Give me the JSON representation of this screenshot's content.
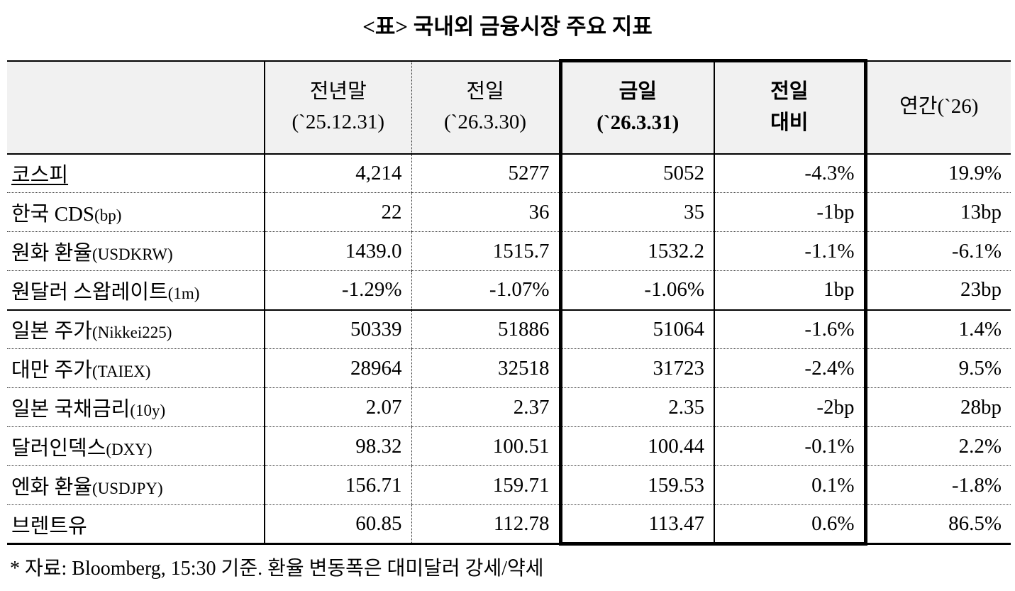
{
  "page": {
    "title": "<표> 국내외 금융시장 주요 지표",
    "footnote": "* 자료: Bloomberg, 15:30 기준. 환율 변동폭은 대미달러 강세/약세"
  },
  "colors": {
    "header_background": "#f1f1f1",
    "border": "#000000",
    "text": "#000000"
  },
  "table": {
    "header": {
      "col1": "",
      "col2_line1": "전년말",
      "col2_line2": "(`25.12.31)",
      "col3_line1": "전일",
      "col3_line2": "(`26.3.30)",
      "col4_line1": "금일",
      "col4_line2": "(`26.3.31)",
      "col5_line1": "전일",
      "col5_line2": "대비",
      "col6": "연간(`26)"
    },
    "rows": [
      {
        "name": "코스피",
        "sub": "",
        "values": [
          "4,214",
          "5277",
          "5052",
          "-4.3%",
          "19.9%"
        ]
      },
      {
        "name": "한국 CDS",
        "sub": "(bp)",
        "values": [
          "22",
          "36",
          "35",
          "-1bp",
          "13bp"
        ]
      },
      {
        "name": "원화 환율",
        "sub": "(USDKRW)",
        "values": [
          "1439.0",
          "1515.7",
          "1532.2",
          "-1.1%",
          "-6.1%"
        ]
      },
      {
        "name": "원달러 스왑레이트",
        "sub": "(1m)",
        "values": [
          "-1.29%",
          "-1.07%",
          "-1.06%",
          "1bp",
          "23bp"
        ]
      },
      {
        "name": "일본 주가",
        "sub": "(Nikkei225)",
        "values": [
          "50339",
          "51886",
          "51064",
          "-1.6%",
          "1.4%"
        ]
      },
      {
        "name": "대만 주가",
        "sub": "(TAIEX)",
        "values": [
          "28964",
          "32518",
          "31723",
          "-2.4%",
          "9.5%"
        ]
      },
      {
        "name": "일본 국채금리",
        "sub": "(10y)",
        "values": [
          "2.07",
          "2.37",
          "2.35",
          "-2bp",
          "28bp"
        ]
      },
      {
        "name": "달러인덱스",
        "sub": "(DXY)",
        "values": [
          "98.32",
          "100.51",
          "100.44",
          "-0.1%",
          "2.2%"
        ]
      },
      {
        "name": "엔화 환율",
        "sub": "(USDJPY)",
        "values": [
          "156.71",
          "159.71",
          "159.53",
          "0.1%",
          "-1.8%"
        ]
      },
      {
        "name": "브렌트유",
        "sub": "",
        "values": [
          "60.85",
          "112.78",
          "113.47",
          "0.6%",
          "86.5%"
        ]
      }
    ]
  }
}
